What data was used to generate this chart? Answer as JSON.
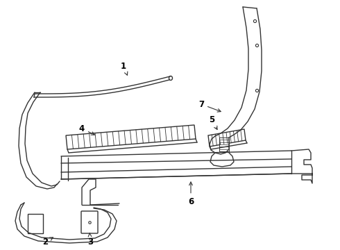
{
  "bg_color": "#ffffff",
  "line_color": "#333333",
  "line_width": 1.0,
  "label_color": "#000000",
  "figsize": [
    4.9,
    3.6
  ],
  "dpi": 100
}
